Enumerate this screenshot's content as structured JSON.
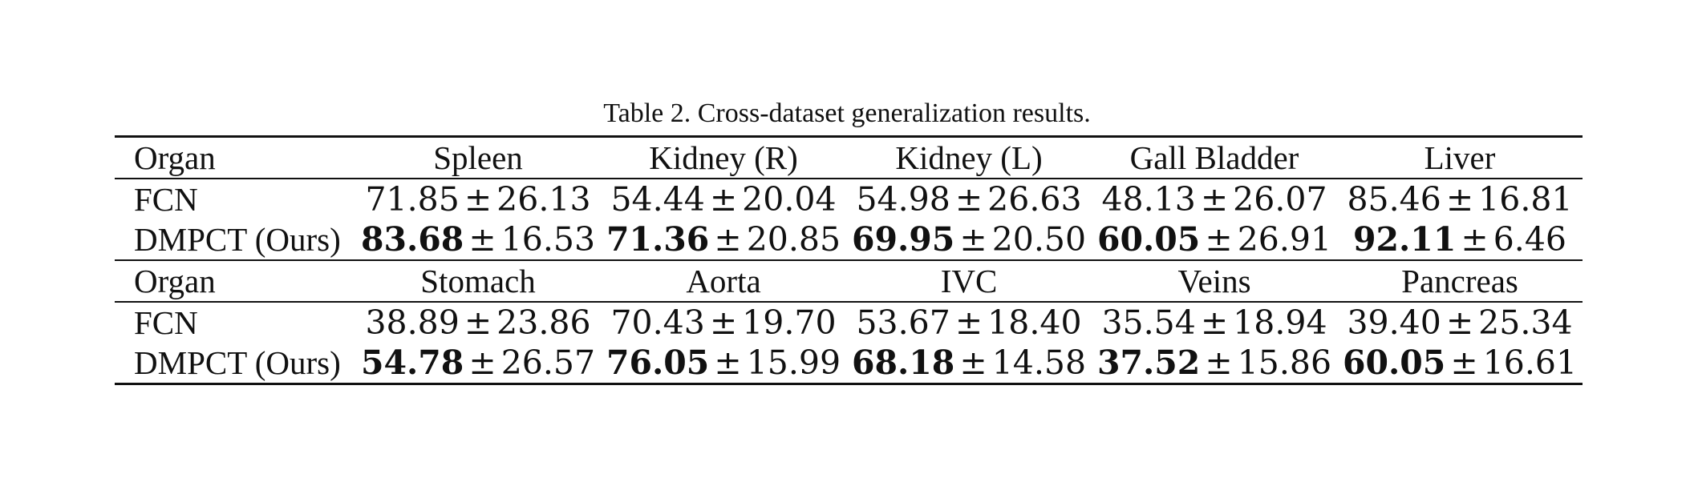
{
  "caption": "Table 2. Cross-dataset generalization results.",
  "pm_symbol": "±",
  "blocks": [
    {
      "header": {
        "label": "Organ",
        "columns": [
          "Spleen",
          "Kidney (R)",
          "Kidney (L)",
          "Gall Bladder",
          "Liver"
        ]
      },
      "rows": [
        {
          "method": "FCN",
          "cells": [
            {
              "mean": "71.85",
              "std": "26.13"
            },
            {
              "mean": "54.44",
              "std": "20.04"
            },
            {
              "mean": "54.98",
              "std": "26.63"
            },
            {
              "mean": "48.13",
              "std": "26.07"
            },
            {
              "mean": "85.46",
              "std": "16.81"
            }
          ]
        },
        {
          "method": "DMPCT (Ours)",
          "cells": [
            {
              "mean": "83.68",
              "std": "16.53"
            },
            {
              "mean": "71.36",
              "std": "20.85"
            },
            {
              "mean": "69.95",
              "std": "20.50"
            },
            {
              "mean": "60.05",
              "std": "26.91"
            },
            {
              "mean": "92.11",
              "std": "6.46"
            }
          ]
        }
      ]
    },
    {
      "header": {
        "label": "Organ",
        "columns": [
          "Stomach",
          "Aorta",
          "IVC",
          "Veins",
          "Pancreas"
        ]
      },
      "rows": [
        {
          "method": "FCN",
          "cells": [
            {
              "mean": "38.89",
              "std": "23.86"
            },
            {
              "mean": "70.43",
              "std": "19.70"
            },
            {
              "mean": "53.67",
              "std": "18.40"
            },
            {
              "mean": "35.54",
              "std": "18.94"
            },
            {
              "mean": "39.40",
              "std": "25.34"
            }
          ]
        },
        {
          "method": "DMPCT (Ours)",
          "cells": [
            {
              "mean": "54.78",
              "std": "26.57"
            },
            {
              "mean": "76.05",
              "std": "15.99"
            },
            {
              "mean": "68.18",
              "std": "14.58"
            },
            {
              "mean": "37.52",
              "std": "15.86"
            },
            {
              "mean": "60.05",
              "std": "16.61"
            }
          ]
        }
      ]
    }
  ]
}
